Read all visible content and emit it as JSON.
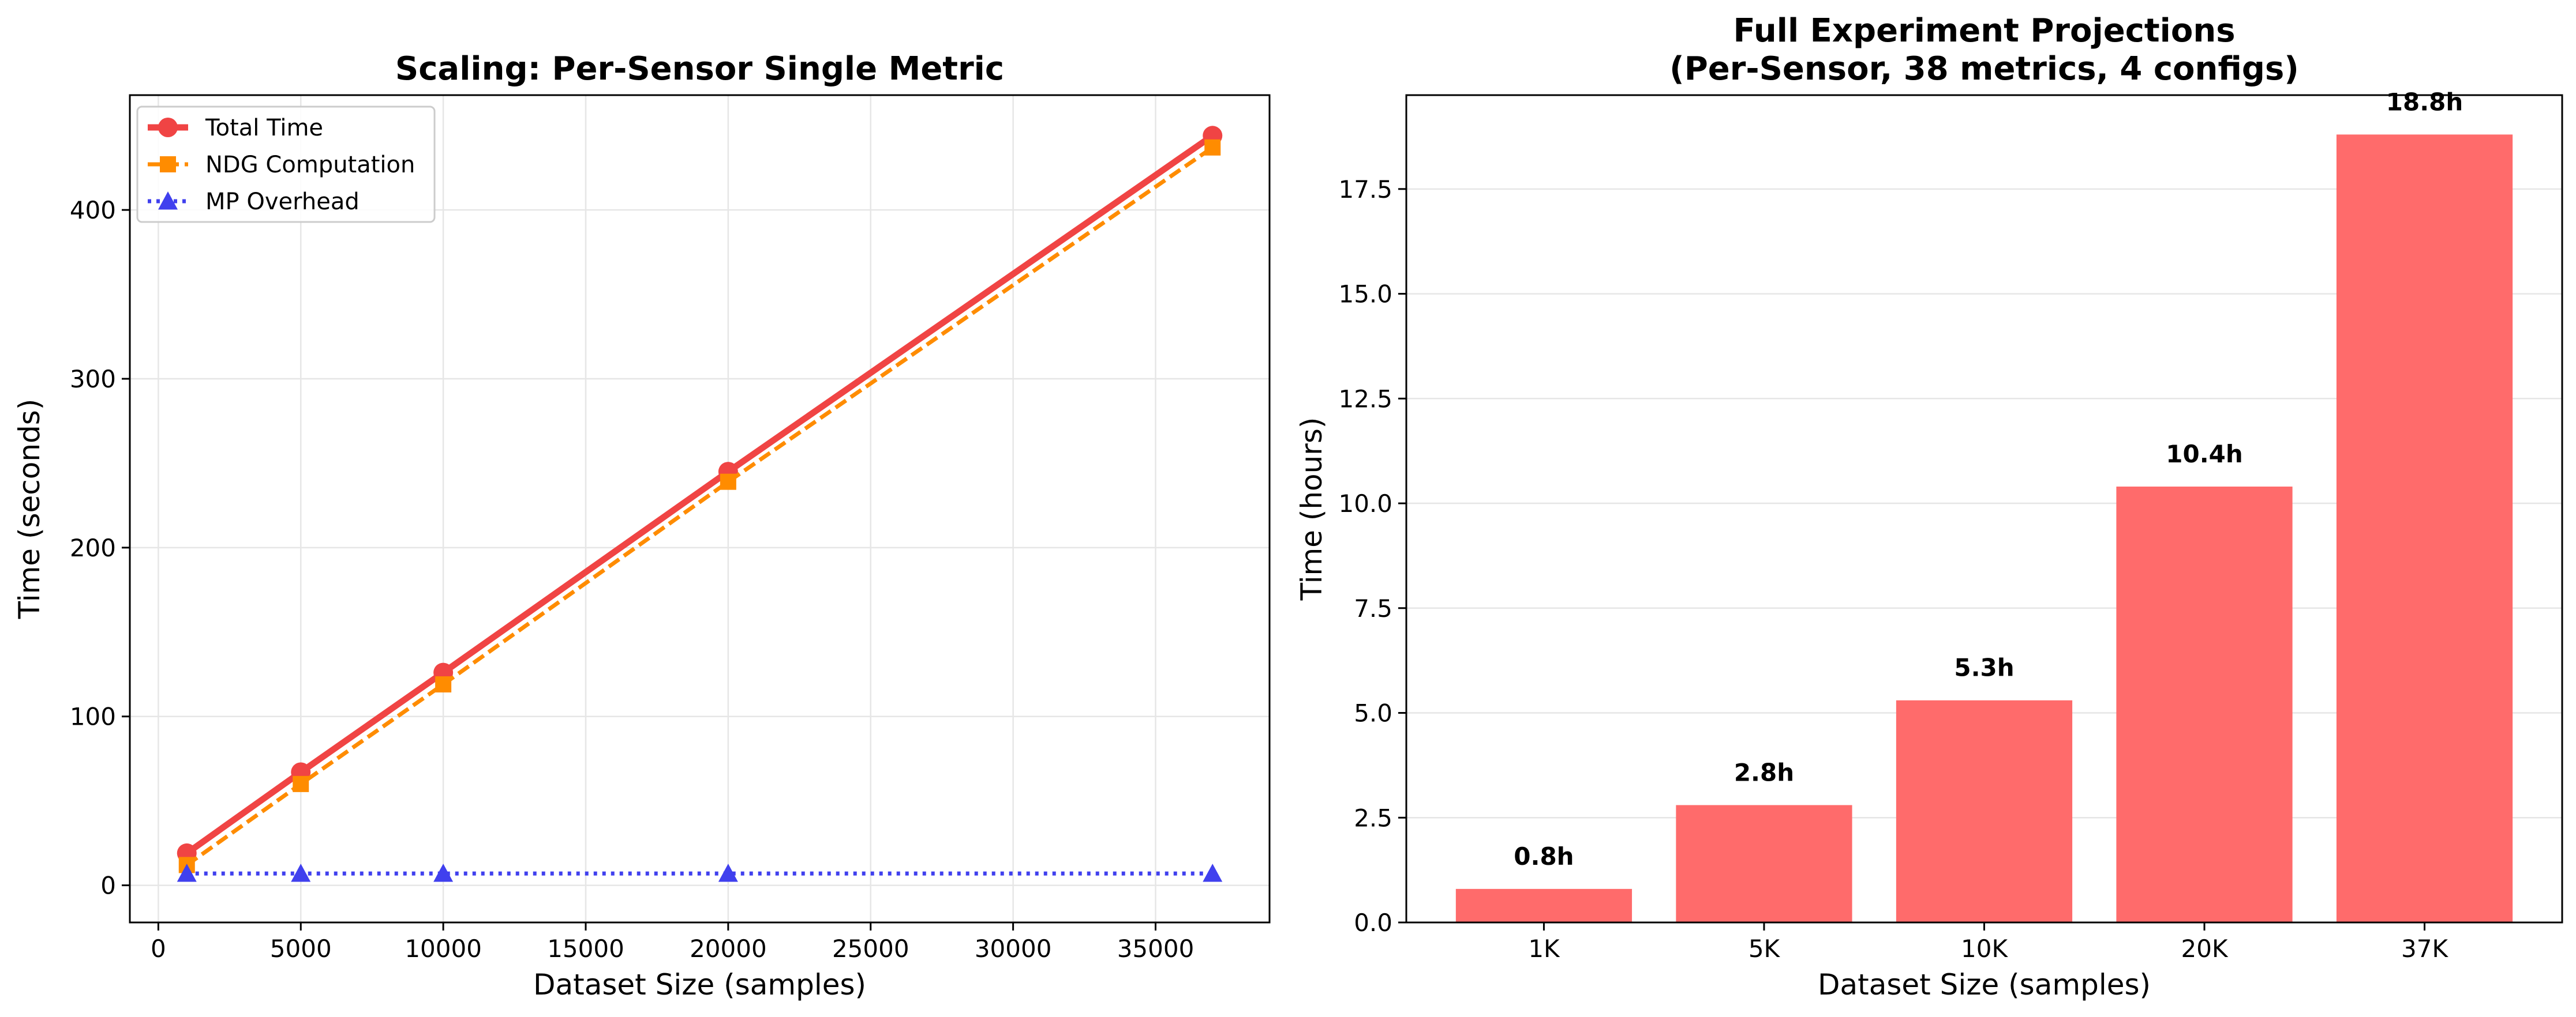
{
  "chart_data": [
    {
      "type": "line",
      "title": "Scaling: Per-Sensor Single Metric",
      "xlabel": "Dataset Size (samples)",
      "ylabel": "Time (seconds)",
      "xlim": [
        -1000,
        39000
      ],
      "ylim": [
        -22,
        468
      ],
      "xticks": [
        0,
        5000,
        10000,
        15000,
        20000,
        25000,
        30000,
        35000
      ],
      "yticks": [
        0,
        100,
        200,
        300,
        400
      ],
      "grid": true,
      "legend": "top-left",
      "x": [
        1000,
        5000,
        10000,
        20000,
        37000
      ],
      "series": [
        {
          "name": "Total Time",
          "values": [
            19,
            67,
            126,
            245,
            444
          ],
          "color": "#f04444",
          "style": "solid",
          "marker": "circle"
        },
        {
          "name": "NDG Computation",
          "values": [
            12,
            60,
            119,
            239,
            437
          ],
          "color": "#ff8c00",
          "style": "dashed",
          "marker": "square"
        },
        {
          "name": "MP Overhead",
          "values": [
            7,
            7,
            7,
            7,
            7
          ],
          "color": "#4040ee",
          "style": "dotted",
          "marker": "triangle"
        }
      ]
    },
    {
      "type": "bar",
      "title": "Full Experiment Projections",
      "subtitle": "(Per-Sensor, 38 metrics, 4 configs)",
      "xlabel": "Dataset Size (samples)",
      "ylabel": "Time (hours)",
      "ylim": [
        0,
        19.74
      ],
      "yticks": [
        0.0,
        2.5,
        5.0,
        7.5,
        10.0,
        12.5,
        15.0,
        17.5
      ],
      "grid": true,
      "color": "#ff6b6b",
      "categories": [
        "1K",
        "5K",
        "10K",
        "20K",
        "37K"
      ],
      "values": [
        0.8,
        2.8,
        5.3,
        10.4,
        18.8
      ],
      "data_labels": [
        "0.8h",
        "2.8h",
        "5.3h",
        "10.4h",
        "18.8h"
      ]
    }
  ]
}
